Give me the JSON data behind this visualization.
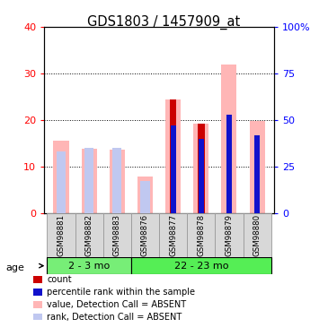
{
  "title": "GDS1803 / 1457909_at",
  "samples": [
    "GSM98881",
    "GSM98882",
    "GSM98883",
    "GSM98876",
    "GSM98877",
    "GSM98878",
    "GSM98879",
    "GSM98880"
  ],
  "group1_count": 3,
  "group2_count": 5,
  "groups": [
    {
      "label": "2 - 3 mo",
      "color": "#77ee77"
    },
    {
      "label": "22 - 23 mo",
      "color": "#55ee55"
    }
  ],
  "value_absent": [
    15.6,
    13.8,
    13.7,
    8.0,
    24.5,
    19.2,
    32.0,
    19.8
  ],
  "rank_absent_pct": [
    33.0,
    35.0,
    35.0,
    17.5,
    null,
    null,
    null,
    null
  ],
  "count": [
    null,
    null,
    null,
    null,
    24.5,
    19.2,
    null,
    null
  ],
  "percentile_pct": [
    null,
    null,
    null,
    null,
    47.0,
    40.0,
    53.0,
    42.0
  ],
  "ylim_left": [
    0,
    40
  ],
  "ylim_right": [
    0,
    100
  ],
  "yticks_left": [
    0,
    10,
    20,
    30,
    40
  ],
  "ytick_labels_left": [
    "0",
    "10",
    "20",
    "30",
    "40"
  ],
  "yticks_right": [
    0,
    25,
    50,
    75,
    100
  ],
  "ytick_labels_right": [
    "0",
    "25",
    "50",
    "75",
    "100%"
  ],
  "bar_width": 0.55,
  "color_count": "#cc0000",
  "color_percentile": "#1111cc",
  "color_value_absent": "#ffb6b6",
  "color_rank_absent": "#c0c8f0",
  "legend_items": [
    {
      "label": "count",
      "color": "#cc0000"
    },
    {
      "label": "percentile rank within the sample",
      "color": "#1111cc"
    },
    {
      "label": "value, Detection Call = ABSENT",
      "color": "#ffb6b6"
    },
    {
      "label": "rank, Detection Call = ABSENT",
      "color": "#c0c8f0"
    }
  ],
  "age_label": "age"
}
